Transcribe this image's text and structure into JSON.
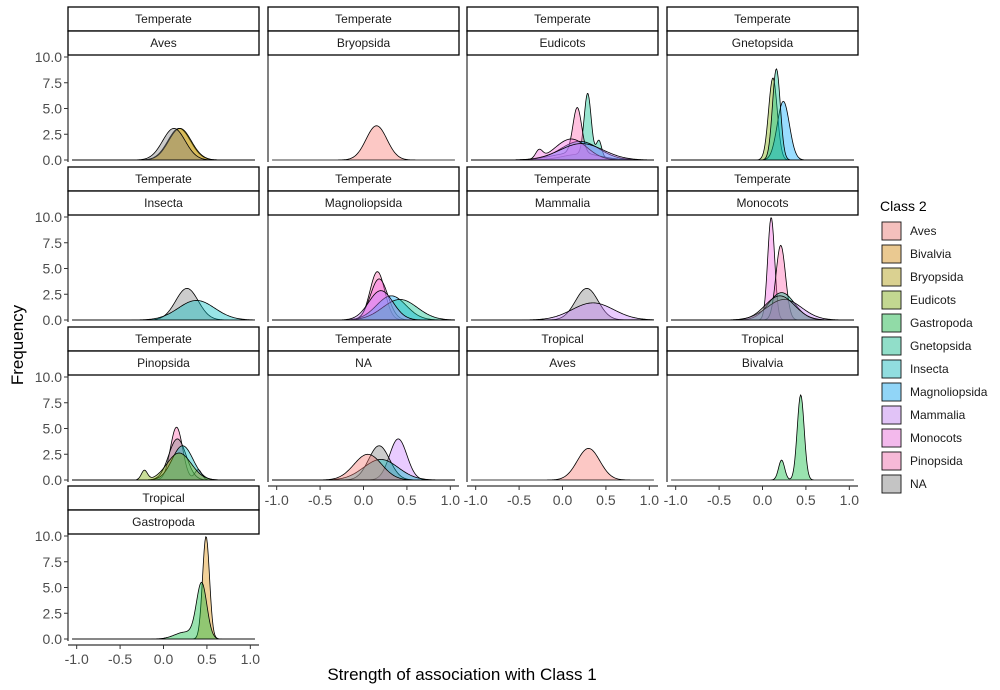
{
  "chart_data": {
    "type": "area",
    "subtype": "faceted-density",
    "xlabel": "Strength of association with Class 1",
    "ylabel": "Frequency",
    "xlim": [
      -1.1,
      1.1
    ],
    "ylim": [
      0,
      10
    ],
    "x_ticks": [
      -1.0,
      -0.5,
      0.0,
      0.5,
      1.0
    ],
    "x_tick_labels": [
      "-1.0",
      "-0.5",
      "0.0",
      "0.5",
      "1.0"
    ],
    "y_ticks": [
      0,
      2.5,
      5,
      7.5,
      10
    ],
    "y_tick_labels": [
      "0.0",
      "2.5",
      "5.0",
      "7.5",
      "10.0"
    ],
    "grid": false,
    "legend": {
      "title": "Class 2",
      "position": "right",
      "entries": [
        {
          "label": "Aves",
          "color": "#F8766D"
        },
        {
          "label": "Bivalvia",
          "color": "#DE8C00"
        },
        {
          "label": "Bryopsida",
          "color": "#B79F00"
        },
        {
          "label": "Eudicots",
          "color": "#7CAE00"
        },
        {
          "label": "Gastropoda",
          "color": "#00BA38"
        },
        {
          "label": "Gnetopsida",
          "color": "#00C08B"
        },
        {
          "label": "Insecta",
          "color": "#00BFC4"
        },
        {
          "label": "Magnoliopsida",
          "color": "#00A9FF"
        },
        {
          "label": "Mammalia",
          "color": "#C77CFF"
        },
        {
          "label": "Monocots",
          "color": "#F564E3"
        },
        {
          "label": "Pinopsida",
          "color": "#FF64B0"
        },
        {
          "label": "NA",
          "color": "#808080"
        }
      ]
    },
    "panels": [
      {
        "zone": "Temperate",
        "class1": "Aves",
        "series": [
          {
            "name": "Bivalvia",
            "components": [
              [
                1,
                0.18,
                0.13
              ]
            ]
          },
          {
            "name": "Bryopsida",
            "components": [
              [
                1,
                0.19,
                0.13
              ]
            ]
          },
          {
            "name": "NA",
            "components": [
              [
                1,
                0.12,
                0.13
              ]
            ]
          }
        ]
      },
      {
        "zone": "Temperate",
        "class1": "Bryopsida",
        "series": [
          {
            "name": "Aves",
            "components": [
              [
                1,
                0.15,
                0.12
              ]
            ]
          }
        ]
      },
      {
        "zone": "Temperate",
        "class1": "Eudicots",
        "series": [
          {
            "name": "Gnetopsida",
            "components": [
              [
                0.6,
                0.29,
                0.04
              ],
              [
                0.12,
                0.42,
                0.03
              ],
              [
                0.28,
                0.2,
                0.2
              ]
            ]
          },
          {
            "name": "Pinopsida",
            "components": [
              [
                0.55,
                0.17,
                0.05
              ],
              [
                0.45,
                0.15,
                0.25
              ]
            ]
          },
          {
            "name": "Magnoliopsida",
            "components": [
              [
                1,
                0.2,
                0.22
              ]
            ]
          },
          {
            "name": "Monocots",
            "components": [
              [
                0.08,
                -0.27,
                0.04
              ],
              [
                0.92,
                0.1,
                0.18
              ]
            ]
          },
          {
            "name": "Mammalia",
            "components": [
              [
                1,
                0.22,
                0.25
              ]
            ]
          }
        ]
      },
      {
        "zone": "Temperate",
        "class1": "Gnetopsida",
        "series": [
          {
            "name": "Eudicots",
            "components": [
              [
                1,
                0.12,
                0.05
              ]
            ]
          },
          {
            "name": "Magnoliopsida",
            "components": [
              [
                1,
                0.24,
                0.07
              ]
            ]
          },
          {
            "name": "Gnetopsida",
            "components": [
              [
                1,
                0.16,
                0.045
              ]
            ]
          }
        ]
      },
      {
        "zone": "Temperate",
        "class1": "Insecta",
        "series": [
          {
            "name": "NA",
            "components": [
              [
                1,
                0.27,
                0.13
              ]
            ]
          },
          {
            "name": "Insecta",
            "components": [
              [
                1,
                0.38,
                0.21
              ]
            ]
          }
        ]
      },
      {
        "zone": "Temperate",
        "class1": "Magnoliopsida",
        "series": [
          {
            "name": "Pinopsida",
            "components": [
              [
                1,
                0.16,
                0.085
              ]
            ]
          },
          {
            "name": "Monocots",
            "components": [
              [
                1,
                0.18,
                0.1
              ]
            ]
          },
          {
            "name": "Magnoliopsida",
            "components": [
              [
                1,
                0.32,
                0.17
              ]
            ]
          },
          {
            "name": "Gnetopsida",
            "components": [
              [
                1,
                0.42,
                0.2
              ]
            ]
          },
          {
            "name": "Mammalia",
            "components": [
              [
                1,
                0.2,
                0.14
              ]
            ]
          }
        ]
      },
      {
        "zone": "Temperate",
        "class1": "Mammalia",
        "series": [
          {
            "name": "NA",
            "components": [
              [
                1,
                0.28,
                0.13
              ]
            ]
          },
          {
            "name": "Mammalia",
            "components": [
              [
                1,
                0.35,
                0.24
              ]
            ]
          }
        ]
      },
      {
        "zone": "Temperate",
        "class1": "Monocots",
        "series": [
          {
            "name": "Monocots",
            "components": [
              [
                1,
                0.1,
                0.04
              ]
            ]
          },
          {
            "name": "Pinopsida",
            "components": [
              [
                1,
                0.21,
                0.055
              ]
            ]
          },
          {
            "name": "Gnetopsida",
            "components": [
              [
                1,
                0.22,
                0.15
              ]
            ]
          },
          {
            "name": "Mammalia",
            "components": [
              [
                1,
                0.25,
                0.2
              ]
            ]
          },
          {
            "name": "NA",
            "components": [
              [
                1,
                0.2,
                0.17
              ]
            ]
          }
        ]
      },
      {
        "zone": "Temperate",
        "class1": "Pinopsida",
        "series": [
          {
            "name": "Pinopsida",
            "components": [
              [
                0.9,
                0.15,
                0.07
              ],
              [
                0.1,
                0.4,
                0.04
              ]
            ]
          },
          {
            "name": "NA",
            "components": [
              [
                1,
                0.16,
                0.1
              ]
            ]
          },
          {
            "name": "Insecta",
            "components": [
              [
                1,
                0.22,
                0.12
              ]
            ]
          },
          {
            "name": "Eudicots",
            "components": [
              [
                0.08,
                -0.22,
                0.035
              ],
              [
                0.92,
                0.18,
                0.14
              ]
            ]
          }
        ]
      },
      {
        "zone": "Temperate",
        "class1": "NA",
        "series": [
          {
            "name": "Mammalia",
            "components": [
              [
                1,
                0.4,
                0.1
              ]
            ]
          },
          {
            "name": "NA",
            "components": [
              [
                1,
                0.18,
                0.12
              ]
            ]
          },
          {
            "name": "Insecta",
            "components": [
              [
                1,
                0.2,
                0.2
              ]
            ]
          },
          {
            "name": "Aves",
            "components": [
              [
                1,
                0.05,
                0.16
              ]
            ]
          }
        ]
      },
      {
        "zone": "Tropical",
        "class1": "Aves",
        "series": [
          {
            "name": "Aves",
            "components": [
              [
                1,
                0.3,
                0.13
              ]
            ]
          }
        ]
      },
      {
        "zone": "Tropical",
        "class1": "Bivalvia",
        "series": [
          {
            "name": "Gastropoda",
            "components": [
              [
                0.17,
                0.22,
                0.035
              ],
              [
                0.83,
                0.44,
                0.04
              ]
            ]
          }
        ]
      },
      {
        "zone": "Tropical",
        "class1": "Gastropoda",
        "series": [
          {
            "name": "Bivalvia",
            "components": [
              [
                1,
                0.49,
                0.04
              ]
            ]
          },
          {
            "name": "Gastropoda",
            "components": [
              [
                0.8,
                0.44,
                0.06
              ],
              [
                0.2,
                0.25,
                0.12
              ]
            ]
          }
        ]
      }
    ]
  }
}
